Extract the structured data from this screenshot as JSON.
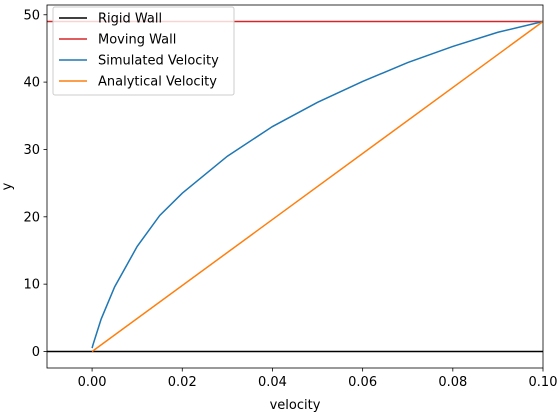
{
  "chart_data": {
    "type": "line",
    "title": "",
    "xlabel": "velocity",
    "ylabel": "y",
    "xlim": [
      -0.01,
      0.1
    ],
    "ylim": [
      -2.45,
      51.45
    ],
    "xticks": [
      0.0,
      0.02,
      0.04,
      0.06,
      0.08,
      0.1
    ],
    "xtick_labels": [
      "0.00",
      "0.02",
      "0.04",
      "0.06",
      "0.08",
      "0.10"
    ],
    "yticks": [
      0,
      10,
      20,
      30,
      40,
      50
    ],
    "ytick_labels": [
      "0",
      "10",
      "20",
      "30",
      "40",
      "50"
    ],
    "grid": false,
    "legend_position": "top-left",
    "series": [
      {
        "name": "Rigid Wall",
        "color": "#000000",
        "x": [
          -0.01,
          0.1
        ],
        "y": [
          0,
          0
        ]
      },
      {
        "name": "Moving Wall",
        "color": "#d62728",
        "x": [
          -0.01,
          0.1
        ],
        "y": [
          49,
          49
        ]
      },
      {
        "name": "Simulated Velocity",
        "color": "#1f77b4",
        "x": [
          0.0,
          0.0002,
          0.002,
          0.005,
          0.01,
          0.015,
          0.02,
          0.03,
          0.04,
          0.05,
          0.06,
          0.07,
          0.08,
          0.09,
          0.1
        ],
        "y": [
          0.5,
          1.0,
          4.8,
          9.6,
          15.6,
          20.2,
          23.5,
          29.0,
          33.4,
          37.0,
          40.1,
          42.9,
          45.3,
          47.4,
          49.0
        ]
      },
      {
        "name": "Analytical Velocity",
        "color": "#ff7f0e",
        "x": [
          0.0,
          0.1
        ],
        "y": [
          0,
          49
        ]
      }
    ]
  }
}
